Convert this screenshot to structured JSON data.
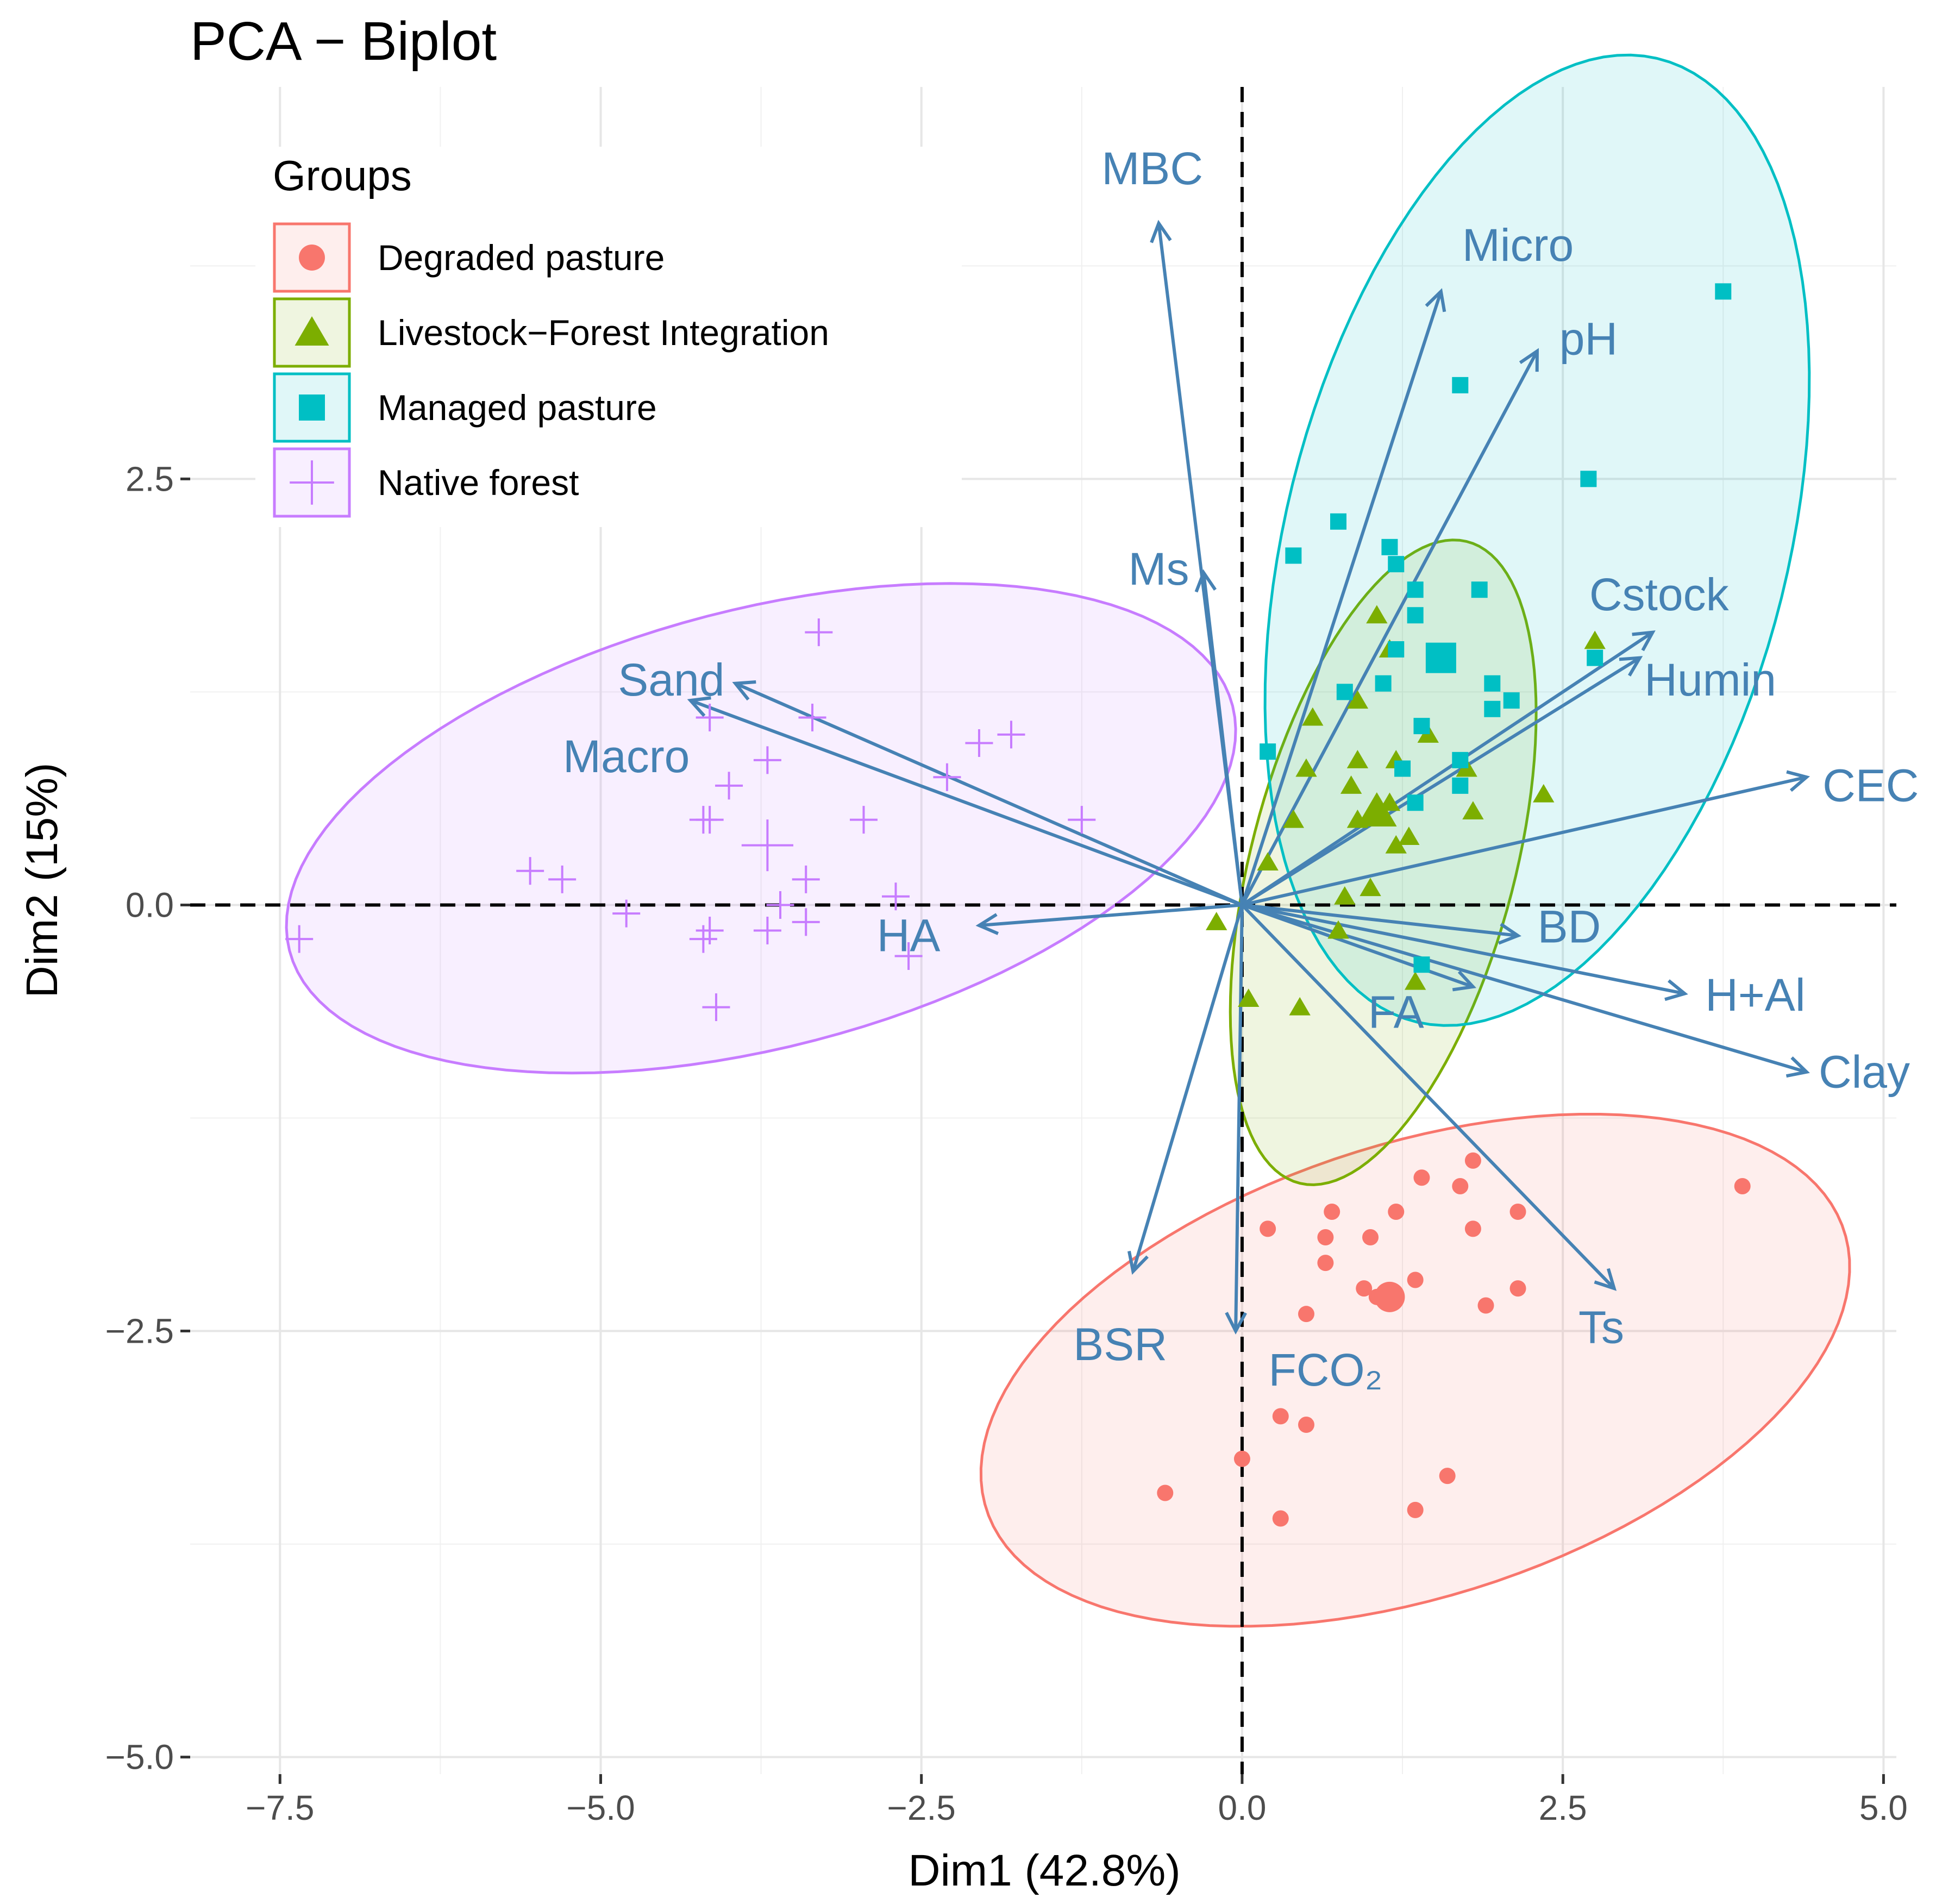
{
  "chart_data": {
    "type": "scatter",
    "title": "PCA − Biplot",
    "xlabel": "Dim1 (42.8%)",
    "ylabel": "Dim2 (15%)",
    "xlim": [
      -8.2,
      5.1
    ],
    "ylim": [
      -5.1,
      4.8
    ],
    "x_ticks": [
      -7.5,
      -5.0,
      -2.5,
      0.0,
      2.5,
      5.0
    ],
    "x_tick_labels": [
      "−7.5",
      "−5.0",
      "−2.5",
      "0.0",
      "2.5",
      "5.0"
    ],
    "y_ticks": [
      -5.0,
      -2.5,
      0.0,
      2.5
    ],
    "y_tick_labels": [
      "−5.0",
      "−2.5",
      "0.0",
      "2.5"
    ],
    "grid": true,
    "legend": {
      "title": "Groups",
      "position": "top-left",
      "entries": [
        {
          "label": "Degraded pasture",
          "color": "#F8766D",
          "shape": "circle"
        },
        {
          "label": "Livestock−Forest Integration",
          "color": "#7CAE00",
          "shape": "triangle"
        },
        {
          "label": "Managed pasture",
          "color": "#00BFC4",
          "shape": "square"
        },
        {
          "label": "Native forest",
          "color": "#C77CFF",
          "shape": "plus"
        }
      ]
    },
    "arrow_color": "#4682B4",
    "series": [
      {
        "name": "Degraded pasture",
        "color": "#F8766D",
        "shape": "circle",
        "centroid": [
          1.15,
          -2.3
        ],
        "ellipse": {
          "cx": 1.35,
          "cy": -2.73,
          "rx": 3.45,
          "ry": 1.35,
          "angle": 12
        },
        "points": [
          [
            0.2,
            -1.9
          ],
          [
            0.65,
            -1.95
          ],
          [
            0.7,
            -1.8
          ],
          [
            0.65,
            -2.1
          ],
          [
            1.0,
            -1.95
          ],
          [
            1.2,
            -1.8
          ],
          [
            1.4,
            -1.6
          ],
          [
            1.7,
            -1.65
          ],
          [
            1.8,
            -1.5
          ],
          [
            1.8,
            -1.9
          ],
          [
            2.15,
            -1.8
          ],
          [
            3.9,
            -1.65
          ],
          [
            0.95,
            -2.25
          ],
          [
            1.35,
            -2.2
          ],
          [
            1.05,
            -2.3
          ],
          [
            1.9,
            -2.35
          ],
          [
            2.15,
            -2.25
          ],
          [
            0.5,
            -2.4
          ],
          [
            0.3,
            -3.0
          ],
          [
            0.5,
            -3.05
          ],
          [
            0.0,
            -3.25
          ],
          [
            -0.6,
            -3.45
          ],
          [
            0.3,
            -3.6
          ],
          [
            1.35,
            -3.55
          ],
          [
            1.6,
            -3.35
          ]
        ]
      },
      {
        "name": "Livestock−Forest Integration",
        "color": "#7CAE00",
        "shape": "triangle",
        "centroid": [
          1.05,
          0.55
        ],
        "ellipse": {
          "cx": 1.1,
          "cy": 0.25,
          "rx": 2.0,
          "ry": 1.0,
          "angle": 68
        },
        "points": [
          [
            1.05,
            1.7
          ],
          [
            1.15,
            1.5
          ],
          [
            0.55,
            1.1
          ],
          [
            0.9,
            1.2
          ],
          [
            0.5,
            0.8
          ],
          [
            0.9,
            0.85
          ],
          [
            0.85,
            0.7
          ],
          [
            1.2,
            0.85
          ],
          [
            1.45,
            1.0
          ],
          [
            1.75,
            0.8
          ],
          [
            2.35,
            0.65
          ],
          [
            0.4,
            0.5
          ],
          [
            0.9,
            0.5
          ],
          [
            1.15,
            0.6
          ],
          [
            1.3,
            0.4
          ],
          [
            1.2,
            0.35
          ],
          [
            1.8,
            0.55
          ],
          [
            2.75,
            1.55
          ],
          [
            0.2,
            0.25
          ],
          [
            1.0,
            0.1
          ],
          [
            0.8,
            0.05
          ],
          [
            -0.2,
            -0.1
          ],
          [
            0.75,
            -0.15
          ],
          [
            1.35,
            -0.45
          ],
          [
            0.05,
            -0.55
          ],
          [
            0.45,
            -0.6
          ]
        ]
      },
      {
        "name": "Managed pasture",
        "color": "#00BFC4",
        "shape": "square",
        "centroid": [
          1.55,
          1.45
        ],
        "ellipse": {
          "cx": 2.3,
          "cy": 2.14,
          "rx": 3.0,
          "ry": 1.9,
          "angle": 66
        },
        "points": [
          [
            3.75,
            3.6
          ],
          [
            1.7,
            3.05
          ],
          [
            2.7,
            2.5
          ],
          [
            0.75,
            2.25
          ],
          [
            0.4,
            2.05
          ],
          [
            1.15,
            2.1
          ],
          [
            1.2,
            2.0
          ],
          [
            1.35,
            1.85
          ],
          [
            1.85,
            1.85
          ],
          [
            1.35,
            1.7
          ],
          [
            1.2,
            1.5
          ],
          [
            2.75,
            1.45
          ],
          [
            0.8,
            1.25
          ],
          [
            1.1,
            1.3
          ],
          [
            1.95,
            1.3
          ],
          [
            1.95,
            1.15
          ],
          [
            2.1,
            1.2
          ],
          [
            1.4,
            1.05
          ],
          [
            0.2,
            0.9
          ],
          [
            1.7,
            0.85
          ],
          [
            1.25,
            0.8
          ],
          [
            1.7,
            0.7
          ],
          [
            1.35,
            0.6
          ],
          [
            1.4,
            -0.35
          ]
        ]
      },
      {
        "name": "Native forest",
        "color": "#C77CFF",
        "shape": "plus",
        "centroid": [
          -3.7,
          0.35
        ],
        "ellipse": {
          "cx": -3.75,
          "cy": 0.45,
          "rx": 3.75,
          "ry": 1.3,
          "angle": 10
        },
        "points": [
          [
            -3.3,
            1.6
          ],
          [
            -4.15,
            1.1
          ],
          [
            -3.35,
            1.1
          ],
          [
            -2.05,
            0.95
          ],
          [
            -1.8,
            1.0
          ],
          [
            -3.7,
            0.85
          ],
          [
            -4.0,
            0.7
          ],
          [
            -2.3,
            0.75
          ],
          [
            -4.15,
            0.5
          ],
          [
            -4.2,
            0.5
          ],
          [
            -2.95,
            0.5
          ],
          [
            -1.25,
            0.5
          ],
          [
            -5.55,
            0.2
          ],
          [
            -5.3,
            0.15
          ],
          [
            -3.4,
            0.15
          ],
          [
            -2.7,
            0.05
          ],
          [
            -4.8,
            -0.05
          ],
          [
            -3.6,
            0.0
          ],
          [
            -3.4,
            -0.1
          ],
          [
            -4.15,
            -0.15
          ],
          [
            -4.2,
            -0.2
          ],
          [
            -3.7,
            -0.15
          ],
          [
            -2.6,
            -0.3
          ],
          [
            -7.35,
            -0.2
          ],
          [
            -4.1,
            -0.6
          ]
        ]
      }
    ],
    "variables": [
      {
        "name": "MBC",
        "x": -0.65,
        "y": 4.0
      },
      {
        "name": "Micro",
        "x": 1.55,
        "y": 3.6
      },
      {
        "name": "pH",
        "x": 2.3,
        "y": 3.25
      },
      {
        "name": "Ms",
        "x": -0.3,
        "y": 1.95
      },
      {
        "name": "Cstock",
        "x": 3.2,
        "y": 1.6
      },
      {
        "name": "Humin",
        "x": 3.1,
        "y": 1.45
      },
      {
        "name": "CEC",
        "x": 4.4,
        "y": 0.75
      },
      {
        "name": "Sand",
        "x": -3.95,
        "y": 1.3
      },
      {
        "name": "Macro",
        "x": -4.3,
        "y": 1.2
      },
      {
        "name": "HA",
        "x": -2.05,
        "y": -0.12
      },
      {
        "name": "BD",
        "x": 2.15,
        "y": -0.18
      },
      {
        "name": "H+Al",
        "x": 3.45,
        "y": -0.52
      },
      {
        "name": "Clay",
        "x": 4.4,
        "y": -0.98
      },
      {
        "name": "FA",
        "x": 1.8,
        "y": -0.48
      },
      {
        "name": "Ts",
        "x": 2.9,
        "y": -2.25
      },
      {
        "name": "BSR",
        "x": -0.85,
        "y": -2.15
      },
      {
        "name": "FCO₂",
        "x": -0.05,
        "y": -2.5
      }
    ],
    "variable_labels": [
      {
        "text": "MBC",
        "x": -0.7,
        "y": 4.3
      },
      {
        "text": "Micro",
        "x": 2.15,
        "y": 3.85
      },
      {
        "text": "pH",
        "x": 2.7,
        "y": 3.3
      },
      {
        "text": "Ms",
        "x": -0.65,
        "y": 1.95
      },
      {
        "text": "Cstock",
        "x": 3.25,
        "y": 1.8
      },
      {
        "text": "Humin",
        "x": 3.65,
        "y": 1.3
      },
      {
        "text": "CEC",
        "x": 4.9,
        "y": 0.68
      },
      {
        "text": "Sand",
        "x": -4.45,
        "y": 1.3
      },
      {
        "text": "Macro",
        "x": -4.8,
        "y": 0.85
      },
      {
        "text": "HA",
        "x": -2.6,
        "y": -0.2
      },
      {
        "text": "BD",
        "x": 2.55,
        "y": -0.15
      },
      {
        "text": "H+Al",
        "x": 4.0,
        "y": -0.55
      },
      {
        "text": "Clay",
        "x": 4.85,
        "y": -1.0
      },
      {
        "text": "FA",
        "x": 1.2,
        "y": -0.65
      },
      {
        "text": "Ts",
        "x": 2.8,
        "y": -2.5
      },
      {
        "text": "BSR",
        "x": -0.95,
        "y": -2.6
      },
      {
        "text": "FCO₂",
        "x": 0.65,
        "y": -2.75
      }
    ]
  }
}
